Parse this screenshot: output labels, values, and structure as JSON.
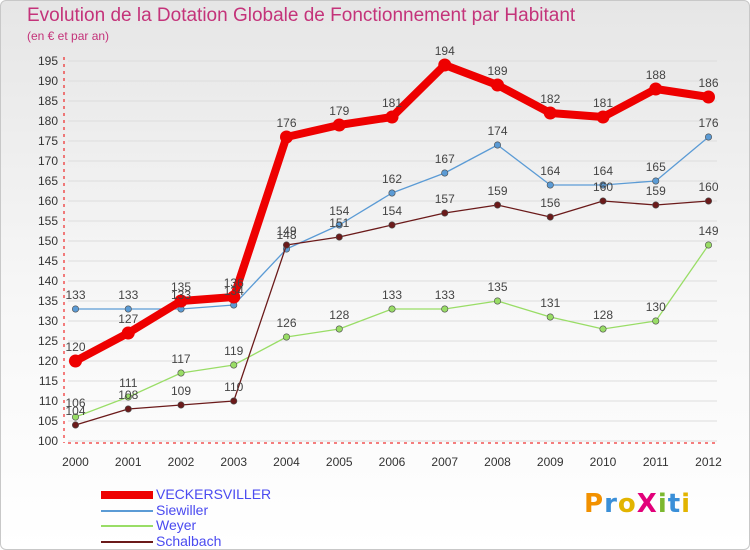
{
  "chart_data": {
    "type": "line",
    "title": "Evolution de la Dotation Globale de Fonctionnement par Habitant",
    "subtitle": "(en € et par an)",
    "categories": [
      "2000",
      "2001",
      "2002",
      "2003",
      "2004",
      "2005",
      "2006",
      "2007",
      "2008",
      "2009",
      "2010",
      "2011",
      "2012"
    ],
    "ylim": [
      100,
      195
    ],
    "yticks": [
      100,
      105,
      110,
      115,
      120,
      125,
      130,
      135,
      140,
      145,
      150,
      155,
      160,
      165,
      170,
      175,
      180,
      185,
      190,
      195
    ],
    "series": [
      {
        "name": "VECKERSVILLER",
        "color": "#ee0000",
        "values": [
          120,
          127,
          135,
          136,
          176,
          179,
          181,
          194,
          189,
          182,
          181,
          188,
          186
        ]
      },
      {
        "name": "Siewiller",
        "color": "#5b9bd5",
        "values": [
          133,
          133,
          133,
          134,
          148,
          154,
          162,
          167,
          174,
          164,
          164,
          165,
          176
        ]
      },
      {
        "name": "Weyer",
        "color": "#99dd66",
        "values": [
          106,
          111,
          117,
          119,
          126,
          128,
          133,
          133,
          135,
          131,
          128,
          130,
          149
        ]
      },
      {
        "name": "Schalbach",
        "color": "#6b1a1a",
        "values": [
          104,
          108,
          109,
          110,
          149,
          151,
          154,
          157,
          159,
          156,
          160,
          159,
          160
        ]
      }
    ]
  },
  "logo": {
    "text": "ProXiti",
    "colors": [
      "#f29100",
      "#3a8fd8",
      "#e2b400",
      "#e2007a",
      "#7cb82f",
      "#3a8fd8",
      "#e2b400"
    ]
  }
}
